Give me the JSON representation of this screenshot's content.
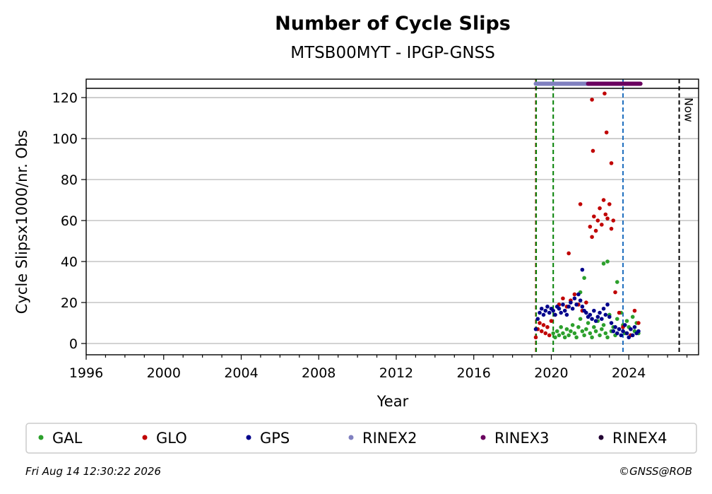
{
  "chart_data": {
    "type": "scatter",
    "title": "Number of Cycle Slips",
    "subtitle": "MTSB00MYT - IPGP-GNSS",
    "xlabel": "Year",
    "ylabel": "Cycle Slipsx1000/nr. Obs",
    "xlim": [
      1996,
      2027.6
    ],
    "ylim": [
      -5.5,
      129
    ],
    "x_ticks": [
      "1996",
      "2000",
      "2004",
      "2008",
      "2012",
      "2016",
      "2020",
      "2024"
    ],
    "y_ticks": [
      "0",
      "20",
      "40",
      "60",
      "80",
      "100",
      "120"
    ],
    "grid": "horizontal",
    "legend": "bottom",
    "series": [
      {
        "name": "GAL",
        "color": "#2ca02c",
        "x": [
          2020.1,
          2020.2,
          2020.3,
          2020.4,
          2020.5,
          2020.6,
          2020.7,
          2020.8,
          2020.9,
          2021.0,
          2021.1,
          2021.2,
          2021.3,
          2021.4,
          2021.5,
          2021.6,
          2021.7,
          2021.8,
          2021.9,
          2022.0,
          2022.1,
          2022.2,
          2022.3,
          2022.4,
          2022.5,
          2022.6,
          2022.7,
          2022.8,
          2022.9,
          2023.0,
          2023.1,
          2023.2,
          2023.3,
          2023.4,
          2023.5,
          2023.6,
          2023.7,
          2023.8,
          2023.9,
          2024.0,
          2024.1,
          2024.2,
          2024.3,
          2024.4,
          2024.5,
          2021.5,
          2021.7,
          2022.7,
          2022.9,
          2023.4
        ],
        "y": [
          5,
          3,
          6,
          4,
          8,
          5,
          3,
          7,
          4,
          6,
          9,
          5,
          3,
          8,
          12,
          6,
          4,
          7,
          10,
          5,
          3,
          8,
          6,
          11,
          4,
          7,
          9,
          5,
          3,
          14,
          6,
          8,
          4,
          12,
          7,
          15,
          9,
          5,
          11,
          8,
          4,
          13,
          6,
          10,
          5,
          25,
          32,
          39,
          40,
          30
        ]
      },
      {
        "name": "GLO",
        "color": "#c00000",
        "x": [
          2019.2,
          2019.3,
          2019.4,
          2019.5,
          2019.6,
          2019.7,
          2019.8,
          2019.9,
          2020.0,
          2020.2,
          2020.4,
          2020.6,
          2020.8,
          2021.0,
          2021.2,
          2021.4,
          2021.6,
          2021.8,
          2022.0,
          2022.1,
          2022.2,
          2022.3,
          2022.4,
          2022.5,
          2022.6,
          2022.7,
          2022.8,
          2022.9,
          2023.0,
          2023.1,
          2023.2,
          2023.3,
          2023.5,
          2023.7,
          2023.9,
          2024.1,
          2024.3,
          2024.5,
          2022.1,
          2022.15,
          2022.75,
          2022.85,
          2023.1,
          2020.9,
          2021.5
        ],
        "y": [
          3,
          7,
          10,
          6,
          9,
          5,
          8,
          4,
          11,
          14,
          19,
          22,
          18,
          21,
          24,
          19,
          16,
          20,
          57,
          52,
          62,
          55,
          60,
          66,
          58,
          70,
          63,
          61,
          68,
          56,
          60,
          25,
          15,
          8,
          5,
          4,
          16,
          10,
          119,
          94,
          122,
          103,
          88,
          44,
          68
        ]
      },
      {
        "name": "GPS",
        "color": "#00008b",
        "x": [
          2019.2,
          2019.3,
          2019.4,
          2019.5,
          2019.6,
          2019.7,
          2019.8,
          2019.9,
          2020.0,
          2020.1,
          2020.2,
          2020.3,
          2020.4,
          2020.5,
          2020.6,
          2020.7,
          2020.8,
          2020.9,
          2021.0,
          2021.1,
          2021.2,
          2021.3,
          2021.4,
          2021.5,
          2021.6,
          2021.7,
          2021.8,
          2021.9,
          2022.0,
          2022.1,
          2022.2,
          2022.3,
          2022.4,
          2022.5,
          2022.6,
          2022.7,
          2022.8,
          2022.9,
          2023.0,
          2023.1,
          2023.2,
          2023.3,
          2023.4,
          2023.5,
          2023.6,
          2023.7,
          2023.8,
          2023.9,
          2024.0,
          2024.1,
          2024.2,
          2024.3,
          2024.4,
          2024.5,
          2021.6
        ],
        "y": [
          7,
          12,
          15,
          17,
          14,
          16,
          18,
          15,
          17,
          16,
          14,
          18,
          17,
          15,
          19,
          16,
          14,
          18,
          20,
          17,
          22,
          19,
          24,
          21,
          18,
          16,
          15,
          13,
          14,
          12,
          16,
          11,
          13,
          15,
          12,
          17,
          14,
          19,
          13,
          10,
          6,
          8,
          5,
          7,
          4,
          6,
          9,
          5,
          3,
          7,
          4,
          8,
          5,
          6,
          36
        ]
      },
      {
        "name": "RINEX2",
        "color": "#8080c0",
        "x": [
          2019.2,
          2021.9
        ],
        "y": [
          131,
          131
        ]
      },
      {
        "name": "RINEX3",
        "color": "#6a005f",
        "x": [
          2021.9,
          2024.6
        ],
        "y": [
          131,
          131
        ]
      },
      {
        "name": "RINEX4",
        "color": "#220033",
        "x": [],
        "y": []
      }
    ],
    "vlines": [
      {
        "x": 2019.2,
        "color": "#c00000"
      },
      {
        "x": 2019.22,
        "color": "#008000"
      },
      {
        "x": 2020.1,
        "color": "#008000"
      },
      {
        "x": 2023.7,
        "color": "#1f6fbf"
      },
      {
        "x": 2026.6,
        "color": "#000000",
        "label": "Now"
      }
    ]
  },
  "footer": {
    "timestamp": "Fri Aug 14 12:30:22 2026",
    "copyright": "©GNSS@ROB"
  }
}
